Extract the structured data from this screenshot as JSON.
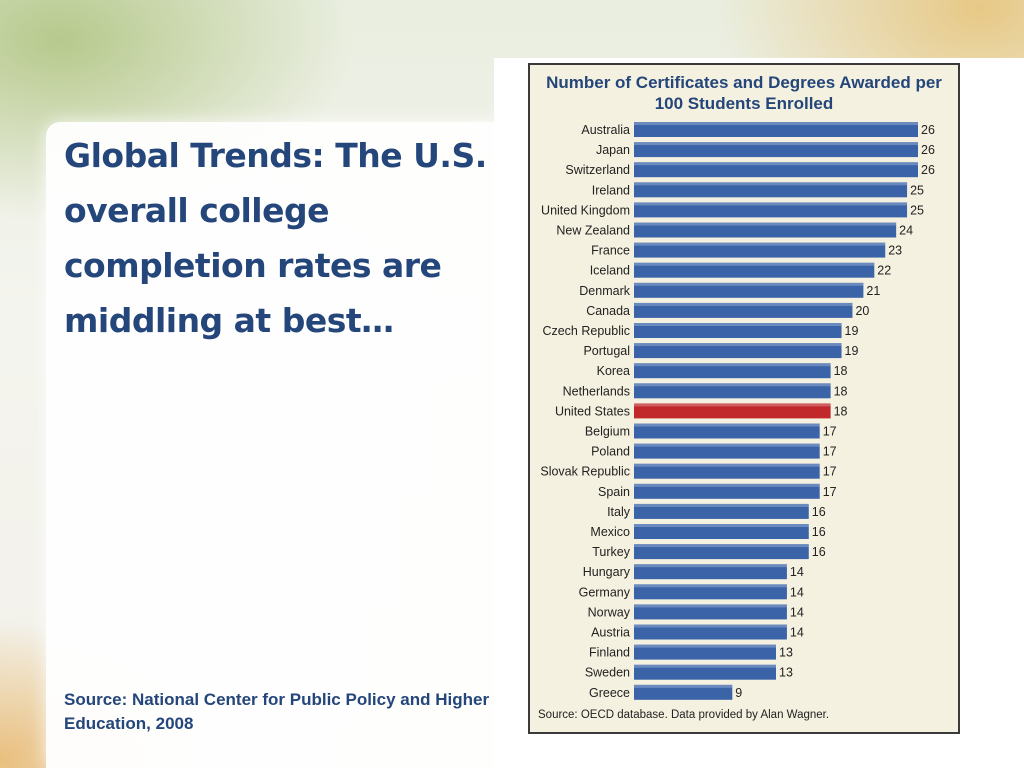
{
  "slide": {
    "title": "Global Trends: The U.S. overall college completion rates are middling at best…",
    "source": "Source: National Center for Public Policy and Higher Education, 2008"
  },
  "chart_data": {
    "type": "bar",
    "orientation": "horizontal",
    "title": "Number of Certificates and Degrees Awarded per 100 Students Enrolled",
    "source_note": "Source: OECD database. Data provided by Alan Wagner.",
    "categories": [
      "Australia",
      "Japan",
      "Switzerland",
      "Ireland",
      "United Kingdom",
      "New Zealand",
      "France",
      "Iceland",
      "Denmark",
      "Canada",
      "Czech Republic",
      "Portugal",
      "Korea",
      "Netherlands",
      "United States",
      "Belgium",
      "Poland",
      "Slovak Republic",
      "Spain",
      "Italy",
      "Mexico",
      "Turkey",
      "Hungary",
      "Germany",
      "Norway",
      "Austria",
      "Finland",
      "Sweden",
      "Greece"
    ],
    "values": [
      26,
      26,
      26,
      25,
      25,
      24,
      23,
      22,
      21,
      20,
      19,
      19,
      18,
      18,
      18,
      17,
      17,
      17,
      17,
      16,
      16,
      16,
      14,
      14,
      14,
      14,
      13,
      13,
      9
    ],
    "highlight": "United States",
    "colors": {
      "bar": "#3a63a8",
      "highlight": "#c0282c",
      "label": "#222222"
    },
    "xlim": [
      0,
      26
    ],
    "grid": false,
    "legend": "none"
  }
}
